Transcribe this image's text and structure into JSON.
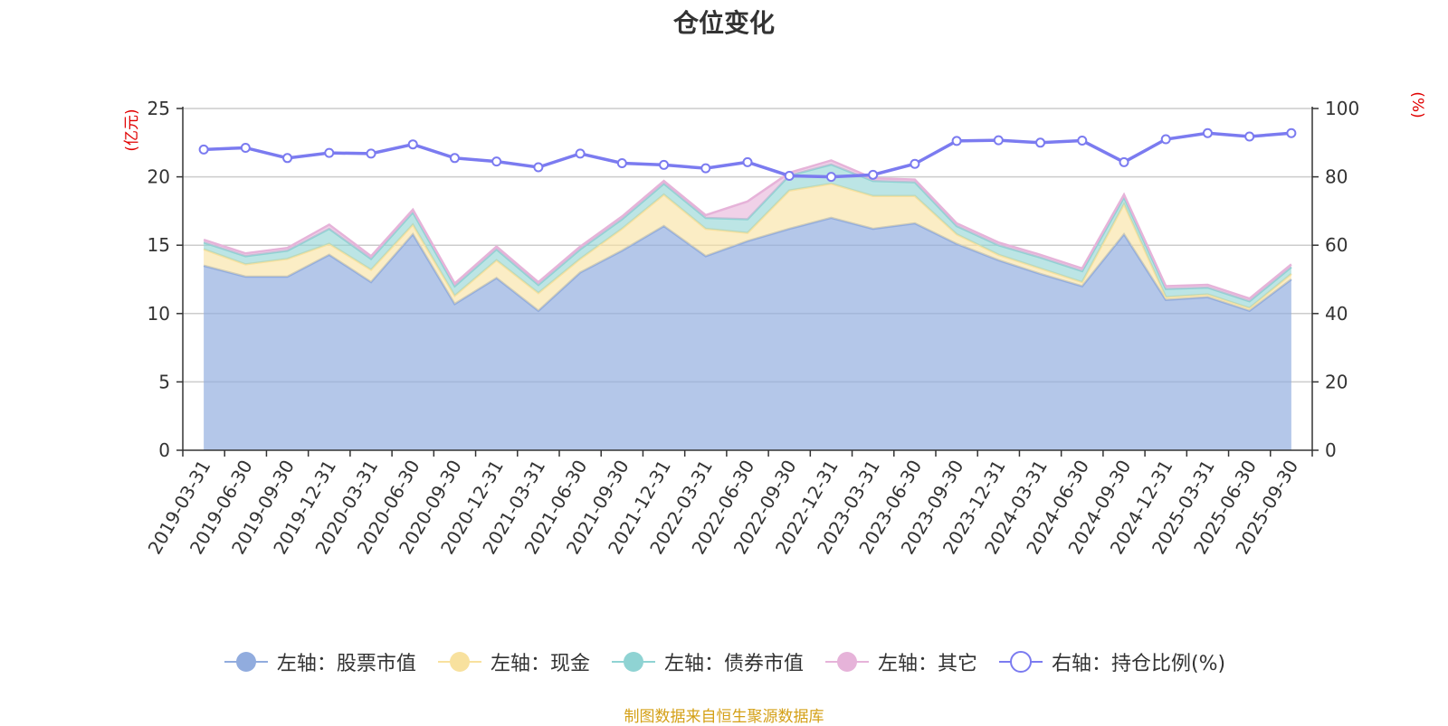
{
  "chart_data": {
    "type": "area",
    "title": "仓位变化",
    "stacked": true,
    "left_axis": {
      "label": "(亿元)",
      "range": [
        0,
        25
      ],
      "ticks": [
        0,
        5,
        10,
        15,
        20,
        25
      ]
    },
    "right_axis": {
      "label": "(%)",
      "range": [
        0,
        100
      ],
      "ticks": [
        0,
        20,
        40,
        60,
        80,
        100
      ]
    },
    "categories": [
      "2019-03-31",
      "2019-06-30",
      "2019-09-30",
      "2019-12-31",
      "2020-03-31",
      "2020-06-30",
      "2020-09-30",
      "2020-12-31",
      "2021-03-31",
      "2021-06-30",
      "2021-09-30",
      "2021-12-31",
      "2022-03-31",
      "2022-06-30",
      "2022-09-30",
      "2022-12-31",
      "2023-03-31",
      "2023-06-30",
      "2023-09-30",
      "2023-12-31",
      "2024-03-31",
      "2024-06-30",
      "2024-09-30",
      "2024-12-31",
      "2025-03-31",
      "2025-06-30",
      "2025-09-30"
    ],
    "series": [
      {
        "name": "左轴：股票市值",
        "axis": "left",
        "type": "area",
        "color": "#91acde",
        "values": [
          13.5,
          12.7,
          12.7,
          14.3,
          12.3,
          15.8,
          10.7,
          12.6,
          10.2,
          13.0,
          14.6,
          16.4,
          14.2,
          15.3,
          16.2,
          17.0,
          16.2,
          16.6,
          15.1,
          13.9,
          12.9,
          12.0,
          15.8,
          11.0,
          11.2,
          10.2,
          12.5
        ]
      },
      {
        "name": "左轴：现金",
        "axis": "left",
        "type": "area",
        "color": "#f8e19e",
        "values": [
          1.2,
          0.9,
          1.3,
          0.8,
          0.9,
          0.7,
          0.6,
          1.3,
          1.3,
          1.0,
          1.6,
          2.3,
          2.0,
          0.6,
          2.8,
          2.5,
          2.4,
          2.0,
          0.7,
          0.4,
          0.4,
          0.3,
          2.2,
          0.2,
          0.2,
          0.2,
          0.4
        ]
      },
      {
        "name": "左轴：债券市值",
        "axis": "left",
        "type": "area",
        "color": "#8fd3d3",
        "values": [
          0.5,
          0.6,
          0.6,
          1.1,
          0.8,
          0.9,
          0.7,
          0.8,
          0.6,
          0.7,
          0.7,
          0.8,
          0.8,
          1.0,
          1.1,
          1.4,
          1.1,
          1.0,
          0.6,
          0.7,
          0.8,
          0.8,
          0.5,
          0.6,
          0.5,
          0.5,
          0.5
        ]
      },
      {
        "name": "左轴：其它",
        "axis": "left",
        "type": "area",
        "color": "#e6b3d9",
        "values": [
          0.2,
          0.2,
          0.2,
          0.3,
          0.2,
          0.2,
          0.2,
          0.2,
          0.2,
          0.2,
          0.2,
          0.2,
          0.2,
          1.3,
          0.2,
          0.3,
          0.2,
          0.2,
          0.2,
          0.2,
          0.2,
          0.2,
          0.2,
          0.2,
          0.2,
          0.2,
          0.2
        ]
      },
      {
        "name": "右轴：持仓比例(%)",
        "axis": "right",
        "type": "line",
        "color": "#7b7bf0",
        "values": [
          88,
          88.5,
          85.5,
          87,
          86.8,
          89.5,
          85.5,
          84.5,
          82.8,
          86.8,
          84,
          83.5,
          82.5,
          84.3,
          80.3,
          80,
          80.6,
          83.8,
          90.5,
          90.7,
          90,
          90.6,
          84.3,
          91,
          92.8,
          91.8,
          92.8
        ]
      }
    ]
  },
  "legend": [
    {
      "label": "左轴：股票市值",
      "icon": "filled-circle",
      "color": "#91acde"
    },
    {
      "label": "左轴：现金",
      "icon": "filled-circle",
      "color": "#f8e19e"
    },
    {
      "label": "左轴：债券市值",
      "icon": "filled-circle",
      "color": "#8fd3d3"
    },
    {
      "label": "左轴：其它",
      "icon": "filled-circle",
      "color": "#e6b3d9"
    },
    {
      "label": "右轴：持仓比例(%)",
      "icon": "hollow-circle",
      "color": "#7b7bf0"
    }
  ],
  "source": "制图数据来自恒生聚源数据库"
}
